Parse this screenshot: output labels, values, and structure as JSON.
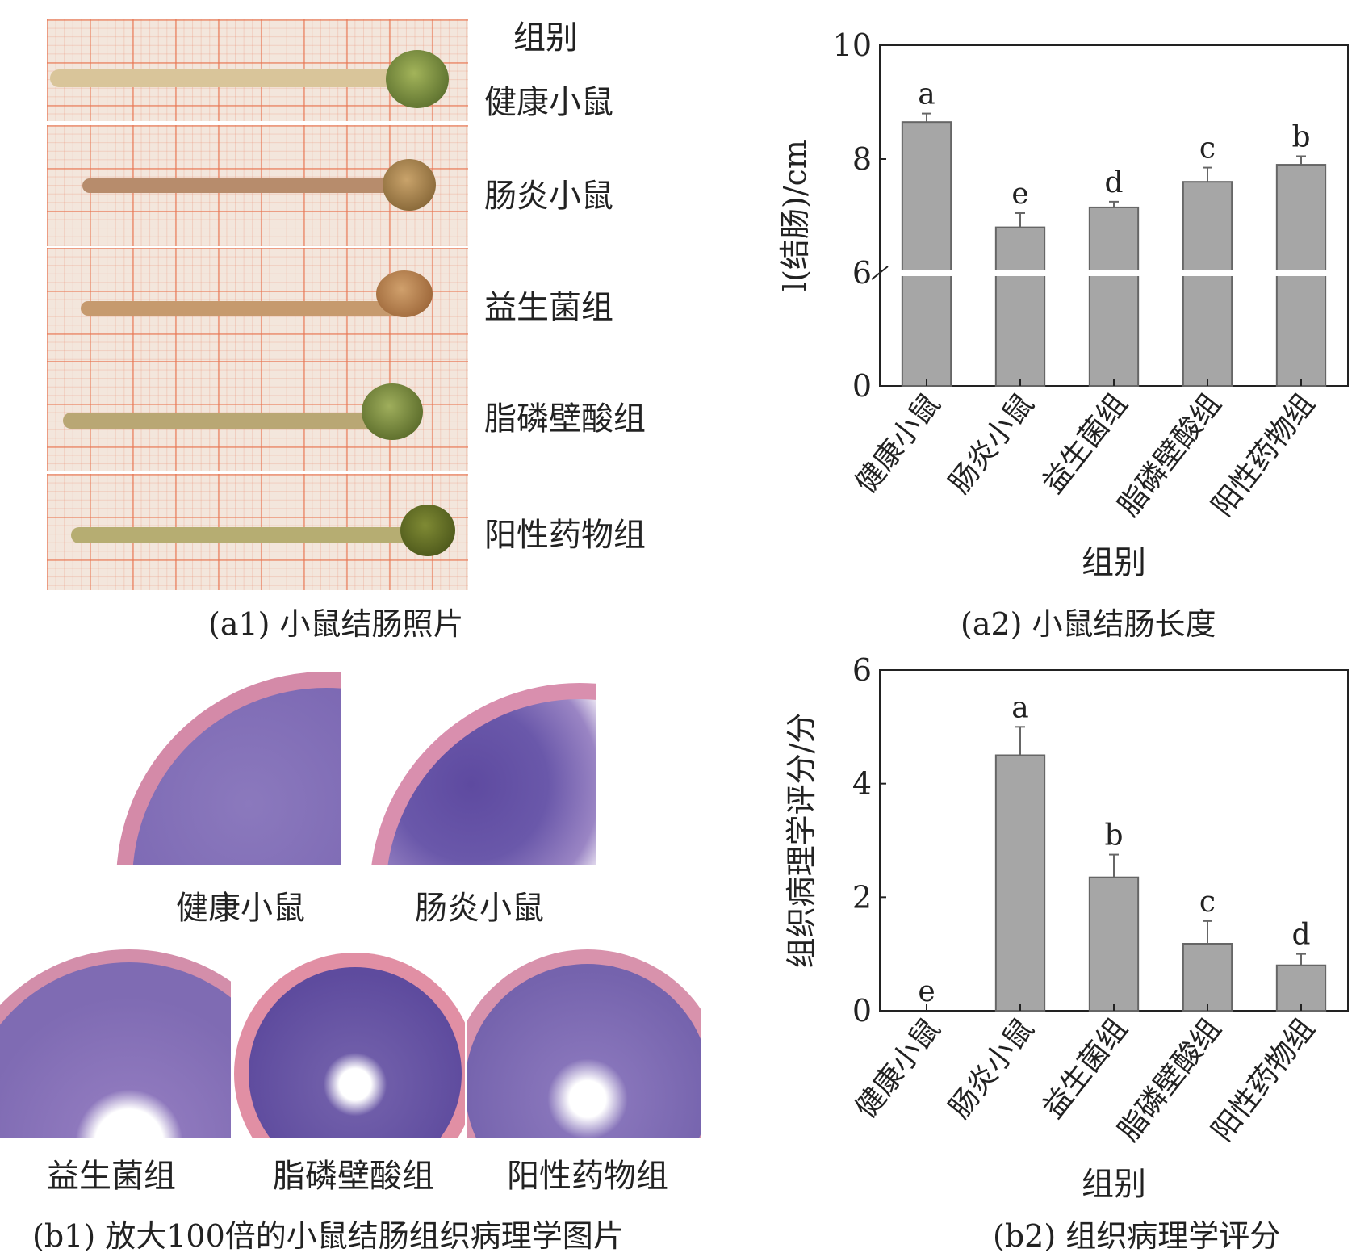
{
  "panel_a1": {
    "header": "组别",
    "groups": [
      "健康小鼠",
      "肠炎小鼠",
      "益生菌组",
      "脂磷壁酸组",
      "阳性药物组"
    ],
    "caption": "(a1) 小鼠结肠照片"
  },
  "panel_b1": {
    "labels": [
      "健康小鼠",
      "肠炎小鼠",
      "益生菌组",
      "脂磷壁酸组",
      "阳性药物组"
    ],
    "caption": "(b1) 放大100倍的小鼠结肠组织病理学图片"
  },
  "chart_data": [
    {
      "type": "bar",
      "caption": "(a2) 小鼠结肠长度",
      "xlabel": "组别",
      "ylabel": "l(结肠)/cm",
      "categories": [
        "健康小鼠",
        "肠炎小鼠",
        "益生菌组",
        "脂磷壁酸组",
        "阳性药物组"
      ],
      "values": [
        8.65,
        6.8,
        7.15,
        7.6,
        7.9
      ],
      "errors": [
        0.15,
        0.25,
        0.1,
        0.25,
        0.15
      ],
      "significance": [
        "a",
        "e",
        "d",
        "c",
        "b"
      ],
      "yticks": [
        0,
        6,
        8,
        10
      ],
      "axis_break": true,
      "ylim": [
        0,
        10
      ],
      "bar_color": "#a6a6a6"
    },
    {
      "type": "bar",
      "caption": "(b2) 组织病理学评分",
      "xlabel": "组别",
      "ylabel": "组织病理学评分/分",
      "categories": [
        "健康小鼠",
        "肠炎小鼠",
        "益生菌组",
        "脂磷壁酸组",
        "阳性药物组"
      ],
      "values": [
        0,
        4.5,
        2.35,
        1.18,
        0.8
      ],
      "errors": [
        0,
        0.5,
        0.4,
        0.4,
        0.2
      ],
      "significance": [
        "e",
        "a",
        "b",
        "c",
        "d"
      ],
      "yticks": [
        0,
        2,
        4,
        6
      ],
      "ylim": [
        0,
        6
      ],
      "bar_color": "#a6a6a6"
    }
  ]
}
